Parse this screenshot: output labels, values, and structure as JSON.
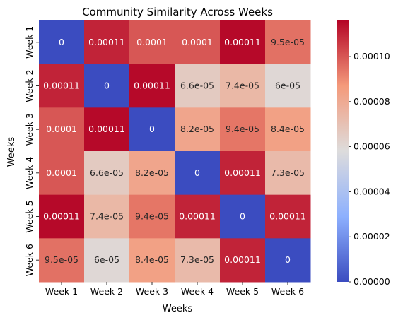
{
  "chart_data": {
    "type": "heatmap",
    "title": "Community Similarity Across Weeks",
    "xlabel": "Weeks",
    "ylabel": "Weeks",
    "x_categories": [
      "Week 1",
      "Week 2",
      "Week 3",
      "Week 4",
      "Week 5",
      "Week 6"
    ],
    "y_categories": [
      "Week 1",
      "Week 2",
      "Week 3",
      "Week 4",
      "Week 5",
      "Week 6"
    ],
    "values": [
      [
        0,
        0.00011,
        0.0001,
        0.0001,
        0.000115,
        9.5e-05
      ],
      [
        0.00011,
        0,
        0.000115,
        6.6e-05,
        7.4e-05,
        6e-05
      ],
      [
        0.0001,
        0.000115,
        0,
        8.2e-05,
        9.4e-05,
        8.4e-05
      ],
      [
        0.0001,
        6.6e-05,
        8.2e-05,
        0,
        0.00011,
        7.3e-05
      ],
      [
        0.000115,
        7.4e-05,
        9.4e-05,
        0.00011,
        0,
        0.00011
      ],
      [
        9.5e-05,
        6e-05,
        8.4e-05,
        7.3e-05,
        0.00011,
        0
      ]
    ],
    "annotations": [
      [
        "0",
        "0.00011",
        "0.0001",
        "0.0001",
        "0.00011",
        "9.5e-05"
      ],
      [
        "0.00011",
        "0",
        "0.00011",
        "6.6e-05",
        "7.4e-05",
        "6e-05"
      ],
      [
        "0.0001",
        "0.00011",
        "0",
        "8.2e-05",
        "9.4e-05",
        "8.4e-05"
      ],
      [
        "0.0001",
        "6.6e-05",
        "8.2e-05",
        "0",
        "0.00011",
        "7.3e-05"
      ],
      [
        "0.00011",
        "7.4e-05",
        "9.4e-05",
        "0.00011",
        "0",
        "0.00011"
      ],
      [
        "9.5e-05",
        "6e-05",
        "8.4e-05",
        "7.3e-05",
        "0.00011",
        "0"
      ]
    ],
    "colorbar": {
      "colormap": "coolwarm",
      "range": [
        0,
        0.000116
      ],
      "ticks": [
        0,
        2e-05,
        4e-05,
        6e-05,
        8e-05,
        0.0001
      ],
      "tick_labels": [
        "0.00000",
        "0.00002",
        "0.00004",
        "0.00006",
        "0.00008",
        "0.00010"
      ]
    },
    "grid": false
  }
}
